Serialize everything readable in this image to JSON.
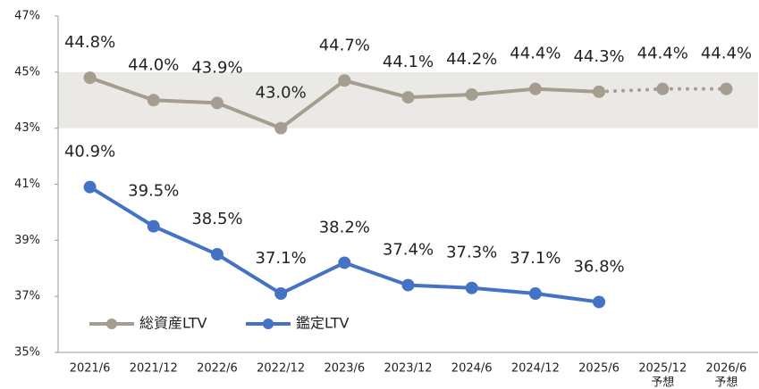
{
  "chart_data": {
    "type": "line",
    "categories": [
      "2021/6",
      "2021/12",
      "2022/6",
      "2022/12",
      "2023/6",
      "2023/12",
      "2024/6",
      "2024/12",
      "2025/6",
      "2025/12",
      "2026/6"
    ],
    "forecast": [
      false,
      false,
      false,
      false,
      false,
      false,
      false,
      false,
      false,
      true,
      true
    ],
    "forecast_label": "予想",
    "series": [
      {
        "name": "総資産LTV",
        "color": "#a59d8f",
        "values": [
          44.8,
          44.0,
          43.9,
          43.0,
          44.7,
          44.1,
          44.2,
          44.4,
          44.3,
          44.4,
          44.4
        ],
        "value_labels": [
          "44.8%",
          "44.0%",
          "43.9%",
          "43.0%",
          "44.7%",
          "44.1%",
          "44.2%",
          "44.4%",
          "44.3%",
          "44.4%",
          "44.4%"
        ]
      },
      {
        "name": "鑑定LTV",
        "color": "#4472c4",
        "values": [
          40.9,
          39.5,
          38.5,
          37.1,
          38.2,
          37.4,
          37.3,
          37.1,
          36.8,
          null,
          null
        ],
        "value_labels": [
          "40.9%",
          "39.5%",
          "38.5%",
          "37.1%",
          "38.2%",
          "37.4%",
          "37.3%",
          "37.1%",
          "36.8%",
          null,
          null
        ]
      }
    ],
    "ylim": [
      35,
      47
    ],
    "yticks": [
      {
        "value": 35,
        "label": "35%"
      },
      {
        "value": 37,
        "label": "37%"
      },
      {
        "value": 39,
        "label": "39%"
      },
      {
        "value": 41,
        "label": "41%"
      },
      {
        "value": 43,
        "label": "43%"
      },
      {
        "value": 45,
        "label": "45%"
      },
      {
        "value": 47,
        "label": "47%"
      }
    ],
    "band": [
      43,
      45
    ],
    "band_color": "#ebe9e5",
    "grid": false,
    "legend": "lower left"
  }
}
